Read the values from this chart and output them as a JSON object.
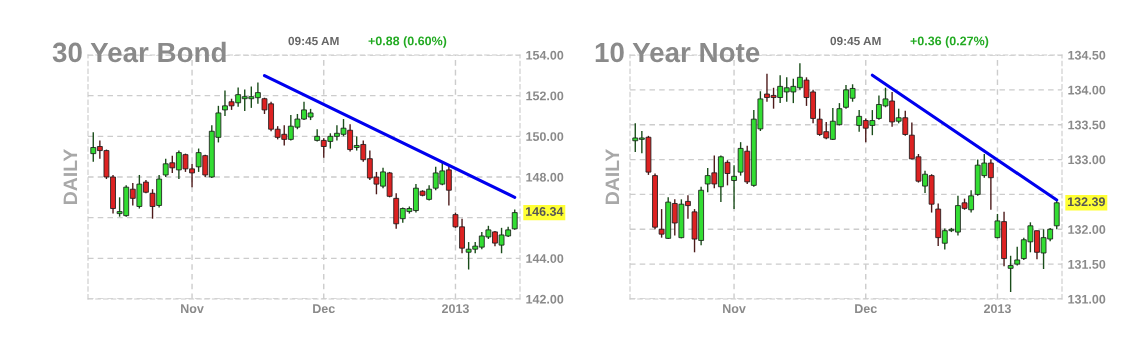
{
  "chart_data": [
    {
      "type": "candlestick",
      "title": "30 Year Bond",
      "subtitle": "09:45 AM",
      "ylabel": "DAILY",
      "annotations": [
        "+0.88 (0.60%)",
        "146.34"
      ],
      "categories": [
        null,
        null,
        null,
        null,
        null,
        null,
        null,
        null,
        null,
        null,
        null,
        null,
        null,
        null,
        null,
        "Nov",
        null,
        null,
        null,
        null,
        null,
        null,
        null,
        null,
        null,
        null,
        null,
        null,
        null,
        null,
        null,
        null,
        null,
        null,
        null,
        "Dec",
        null,
        null,
        null,
        null,
        null,
        null,
        null,
        null,
        null,
        null,
        null,
        null,
        null,
        null,
        null,
        null,
        null,
        null,
        null,
        "2013",
        null,
        null,
        null,
        null,
        null,
        null,
        null,
        null,
        null
      ],
      "ohlc": [
        [
          149.15,
          150.2,
          148.75,
          149.45
        ],
        [
          149.5,
          149.8,
          148.9,
          149.3
        ],
        [
          149.3,
          149.35,
          147.9,
          148.0
        ],
        [
          148.0,
          148.1,
          146.2,
          146.45
        ],
        [
          146.2,
          147.0,
          146.05,
          146.3
        ],
        [
          146.1,
          147.6,
          146.05,
          147.5
        ],
        [
          147.4,
          147.7,
          146.6,
          146.95
        ],
        [
          146.55,
          148.1,
          146.45,
          147.65
        ],
        [
          147.75,
          147.85,
          147.2,
          147.25
        ],
        [
          147.2,
          147.4,
          145.95,
          146.55
        ],
        [
          146.6,
          148.1,
          146.5,
          147.9
        ],
        [
          148.1,
          148.9,
          148.0,
          148.65
        ],
        [
          148.7,
          149.05,
          148.2,
          148.45
        ],
        [
          148.35,
          149.3,
          147.9,
          149.2
        ],
        [
          149.1,
          149.15,
          148.25,
          148.4
        ],
        [
          148.4,
          148.65,
          147.5,
          148.2
        ],
        [
          148.5,
          149.4,
          148.25,
          149.2
        ],
        [
          149.05,
          149.1,
          148.0,
          148.1
        ],
        [
          148.0,
          150.55,
          147.95,
          150.25
        ],
        [
          149.95,
          151.5,
          149.7,
          151.15
        ],
        [
          151.3,
          152.25,
          151.0,
          151.5
        ],
        [
          151.7,
          151.85,
          151.3,
          151.5
        ],
        [
          151.65,
          152.4,
          151.45,
          152.05
        ],
        [
          151.85,
          152.3,
          151.25,
          151.95
        ],
        [
          151.85,
          152.45,
          151.4,
          151.95
        ],
        [
          151.9,
          152.65,
          151.6,
          152.15
        ],
        [
          151.85,
          151.9,
          151.1,
          151.3
        ],
        [
          151.6,
          151.7,
          150.25,
          150.35
        ],
        [
          150.35,
          150.5,
          149.85,
          149.95
        ],
        [
          150.1,
          150.55,
          149.55,
          149.85
        ],
        [
          149.85,
          151.05,
          149.8,
          150.5
        ],
        [
          150.45,
          151.1,
          150.35,
          150.85
        ],
        [
          150.85,
          151.7,
          150.8,
          151.3
        ],
        [
          150.95,
          151.35,
          150.8,
          151.15
        ],
        [
          149.8,
          150.35,
          149.75,
          150.0
        ],
        [
          149.8,
          149.9,
          148.95,
          149.5
        ],
        [
          149.75,
          150.15,
          149.4,
          150.0
        ],
        [
          150.0,
          150.55,
          149.8,
          150.15
        ],
        [
          150.1,
          150.85,
          150.0,
          150.4
        ],
        [
          150.3,
          150.6,
          149.25,
          149.35
        ],
        [
          149.45,
          150.0,
          149.3,
          149.55
        ],
        [
          149.6,
          149.8,
          148.75,
          148.85
        ],
        [
          148.9,
          149.3,
          147.85,
          147.95
        ],
        [
          148.0,
          148.25,
          147.15,
          147.65
        ],
        [
          147.55,
          148.45,
          147.45,
          148.25
        ],
        [
          148.2,
          148.25,
          147.0,
          147.05
        ],
        [
          146.95,
          147.2,
          145.45,
          145.7
        ],
        [
          145.95,
          146.5,
          145.75,
          146.45
        ],
        [
          146.3,
          146.55,
          146.2,
          146.45
        ],
        [
          146.35,
          147.65,
          146.25,
          147.45
        ],
        [
          147.3,
          147.35,
          147.05,
          147.1
        ],
        [
          146.9,
          147.6,
          146.85,
          147.4
        ],
        [
          147.45,
          148.5,
          147.35,
          148.2
        ],
        [
          147.65,
          148.7,
          147.6,
          148.3
        ],
        [
          148.35,
          148.6,
          146.6,
          147.35
        ],
        [
          146.15,
          146.25,
          145.5,
          145.55
        ],
        [
          145.55,
          145.95,
          144.25,
          144.5
        ],
        [
          144.3,
          144.8,
          143.45,
          144.45
        ],
        [
          144.45,
          144.8,
          144.25,
          144.6
        ],
        [
          144.55,
          145.3,
          144.45,
          145.1
        ],
        [
          145.05,
          145.6,
          144.95,
          145.4
        ],
        [
          145.3,
          145.35,
          144.6,
          144.75
        ],
        [
          144.65,
          145.5,
          144.25,
          145.15
        ],
        [
          145.1,
          145.55,
          145.05,
          145.4
        ],
        [
          145.45,
          146.4,
          145.4,
          146.25
        ]
      ],
      "colors": [
        "#33dd33",
        "#dd2222",
        "#dd2222",
        "#dd2222",
        "#33dd33",
        "#33dd33",
        "#dd2222",
        "#33dd33",
        "#dd2222",
        "#dd2222",
        "#33dd33",
        "#33dd33",
        "#dd2222",
        "#33dd33",
        "#dd2222",
        "#dd2222",
        "#33dd33",
        "#dd2222",
        "#33dd33",
        "#33dd33",
        "#33dd33",
        "#dd2222",
        "#33dd33",
        "#33dd33",
        "#33dd33",
        "#33dd33",
        "#dd2222",
        "#dd2222",
        "#dd2222",
        "#dd2222",
        "#33dd33",
        "#33dd33",
        "#33dd33",
        "#33dd33",
        "#33dd33",
        "#dd2222",
        "#33dd33",
        "#33dd33",
        "#33dd33",
        "#dd2222",
        "#33dd33",
        "#dd2222",
        "#dd2222",
        "#dd2222",
        "#33dd33",
        "#dd2222",
        "#dd2222",
        "#33dd33",
        "#33dd33",
        "#33dd33",
        "#dd2222",
        "#33dd33",
        "#33dd33",
        "#33dd33",
        "#dd2222",
        "#dd2222",
        "#dd2222",
        "#33dd33",
        "#33dd33",
        "#33dd33",
        "#33dd33",
        "#dd2222",
        "#33dd33",
        "#33dd33",
        "#33dd33"
      ],
      "series": [
        {
          "type": "line",
          "values": [
            null,
            null,
            null,
            null,
            null,
            null,
            null,
            null,
            null,
            null,
            null,
            null,
            null,
            null,
            null,
            null,
            null,
            null,
            null,
            null,
            null,
            null,
            null,
            null,
            null,
            null,
            152.99,
            null,
            null,
            null,
            null,
            null,
            null,
            null,
            null,
            null,
            null,
            null,
            null,
            null,
            null,
            null,
            null,
            null,
            null,
            null,
            null,
            null,
            null,
            null,
            null,
            null,
            null,
            null,
            null,
            null,
            null,
            null,
            null,
            null,
            null,
            null,
            null,
            null,
            147.0
          ],
          "color": "#0000ee"
        }
      ],
      "ylim": [
        142,
        154
      ],
      "yticks": [
        {
          "value": 142,
          "label": "142.00"
        },
        {
          "value": 144,
          "label": "144.00"
        },
        {
          "value": 146,
          "label": null
        },
        {
          "value": 148,
          "label": "148.00"
        },
        {
          "value": 150,
          "label": "150.00"
        },
        {
          "value": 152,
          "label": "152.00"
        },
        {
          "value": 154,
          "label": "154.00"
        }
      ],
      "grid": true
    },
    {
      "type": "candlestick",
      "title": "10 Year Note",
      "subtitle": "09:45 AM",
      "ylabel": "DAILY",
      "annotations": [
        "+0.36 (0.27%)",
        "132.39"
      ],
      "categories": [
        null,
        null,
        null,
        null,
        null,
        null,
        null,
        null,
        null,
        null,
        null,
        null,
        null,
        null,
        null,
        "Nov",
        null,
        null,
        null,
        null,
        null,
        null,
        null,
        null,
        null,
        null,
        null,
        null,
        null,
        null,
        null,
        null,
        null,
        null,
        null,
        "Dec",
        null,
        null,
        null,
        null,
        null,
        null,
        null,
        null,
        null,
        null,
        null,
        null,
        null,
        null,
        null,
        null,
        null,
        null,
        null,
        "2013",
        null,
        null,
        null,
        null,
        null,
        null,
        null,
        null,
        null
      ],
      "ohlc": [
        [
          133.27,
          133.52,
          133.11,
          133.31
        ],
        [
          133.29,
          133.41,
          133.09,
          133.31
        ],
        [
          133.32,
          133.34,
          132.78,
          132.82
        ],
        [
          132.77,
          132.8,
          132.0,
          132.03
        ],
        [
          132.0,
          132.29,
          131.88,
          131.93
        ],
        [
          131.87,
          132.46,
          131.86,
          132.39
        ],
        [
          132.37,
          132.43,
          131.91,
          132.09
        ],
        [
          131.88,
          132.43,
          131.87,
          132.36
        ],
        [
          132.4,
          132.49,
          132.15,
          132.34
        ],
        [
          132.25,
          132.29,
          131.67,
          131.86
        ],
        [
          131.84,
          132.61,
          131.77,
          132.56
        ],
        [
          132.65,
          132.88,
          132.53,
          132.77
        ],
        [
          132.81,
          133.06,
          132.59,
          132.65
        ],
        [
          132.61,
          133.06,
          132.39,
          133.04
        ],
        [
          132.96,
          132.99,
          132.63,
          132.8
        ],
        [
          132.7,
          132.92,
          132.29,
          132.76
        ],
        [
          132.82,
          133.25,
          132.77,
          133.16
        ],
        [
          133.12,
          133.2,
          132.65,
          132.68
        ],
        [
          132.63,
          133.71,
          132.61,
          133.58
        ],
        [
          133.44,
          133.98,
          133.41,
          133.87
        ],
        [
          133.94,
          134.23,
          133.83,
          133.89
        ],
        [
          133.92,
          134.03,
          133.73,
          133.89
        ],
        [
          133.89,
          134.21,
          133.81,
          134.05
        ],
        [
          133.97,
          134.18,
          133.83,
          134.03
        ],
        [
          133.97,
          134.16,
          133.81,
          134.05
        ],
        [
          134.03,
          134.38,
          134.0,
          134.18
        ],
        [
          134.14,
          134.18,
          133.77,
          133.89
        ],
        [
          133.97,
          134.0,
          133.52,
          133.59
        ],
        [
          133.58,
          133.73,
          133.34,
          133.36
        ],
        [
          133.4,
          133.54,
          133.29,
          133.31
        ],
        [
          133.29,
          133.74,
          133.28,
          133.55
        ],
        [
          133.5,
          133.81,
          133.49,
          133.73
        ],
        [
          133.75,
          134.07,
          133.73,
          134.0
        ],
        [
          133.88,
          134.08,
          133.83,
          134.02
        ],
        [
          133.49,
          133.71,
          133.4,
          133.62
        ],
        [
          133.56,
          133.59,
          133.25,
          133.45
        ],
        [
          133.49,
          133.71,
          133.35,
          133.56
        ],
        [
          133.59,
          133.92,
          133.57,
          133.79
        ],
        [
          133.77,
          134.03,
          133.75,
          133.87
        ],
        [
          133.84,
          133.97,
          133.47,
          133.54
        ],
        [
          133.55,
          133.73,
          133.52,
          133.6
        ],
        [
          133.6,
          133.7,
          133.34,
          133.36
        ],
        [
          133.35,
          133.53,
          133.0,
          133.01
        ],
        [
          133.04,
          133.08,
          132.67,
          132.69
        ],
        [
          132.62,
          132.84,
          132.52,
          132.79
        ],
        [
          132.77,
          132.79,
          132.24,
          132.36
        ],
        [
          132.29,
          132.37,
          131.76,
          131.88
        ],
        [
          131.8,
          132.01,
          131.71,
          131.98
        ],
        [
          131.98,
          132.02,
          131.96,
          132.0
        ],
        [
          131.96,
          132.48,
          131.91,
          132.34
        ],
        [
          132.38,
          132.44,
          132.28,
          132.3
        ],
        [
          132.28,
          132.56,
          132.24,
          132.48
        ],
        [
          132.5,
          133.0,
          132.48,
          132.92
        ],
        [
          132.77,
          133.08,
          132.74,
          132.95
        ],
        [
          132.95,
          133.0,
          132.28,
          132.74
        ],
        [
          131.88,
          132.22,
          131.87,
          132.12
        ],
        [
          132.11,
          132.25,
          131.47,
          131.58
        ],
        [
          131.44,
          131.62,
          131.1,
          131.48
        ],
        [
          131.5,
          131.75,
          131.48,
          131.56
        ],
        [
          131.58,
          131.88,
          131.56,
          131.85
        ],
        [
          131.82,
          132.1,
          131.67,
          132.05
        ],
        [
          131.98,
          131.98,
          131.57,
          131.67
        ],
        [
          131.66,
          132.0,
          131.43,
          131.88
        ],
        [
          131.86,
          132.02,
          131.83,
          132.0
        ],
        [
          132.05,
          132.43,
          132.0,
          132.38
        ]
      ],
      "colors": [
        "#33dd33",
        "#33dd33",
        "#dd2222",
        "#dd2222",
        "#dd2222",
        "#33dd33",
        "#dd2222",
        "#33dd33",
        "#dd2222",
        "#dd2222",
        "#33dd33",
        "#33dd33",
        "#dd2222",
        "#33dd33",
        "#dd2222",
        "#33dd33",
        "#33dd33",
        "#dd2222",
        "#33dd33",
        "#33dd33",
        "#dd2222",
        "#dd2222",
        "#33dd33",
        "#33dd33",
        "#33dd33",
        "#33dd33",
        "#dd2222",
        "#dd2222",
        "#dd2222",
        "#dd2222",
        "#33dd33",
        "#33dd33",
        "#33dd33",
        "#33dd33",
        "#33dd33",
        "#dd2222",
        "#33dd33",
        "#33dd33",
        "#33dd33",
        "#dd2222",
        "#33dd33",
        "#dd2222",
        "#dd2222",
        "#dd2222",
        "#33dd33",
        "#dd2222",
        "#dd2222",
        "#33dd33",
        "#33dd33",
        "#33dd33",
        "#dd2222",
        "#33dd33",
        "#33dd33",
        "#33dd33",
        "#dd2222",
        "#33dd33",
        "#dd2222",
        "#33dd33",
        "#33dd33",
        "#33dd33",
        "#33dd33",
        "#dd2222",
        "#33dd33",
        "#33dd33",
        "#33dd33"
      ],
      "series": [
        {
          "type": "line",
          "values": [
            null,
            null,
            null,
            null,
            null,
            null,
            null,
            null,
            null,
            null,
            null,
            null,
            null,
            null,
            null,
            null,
            null,
            null,
            null,
            null,
            null,
            null,
            null,
            null,
            null,
            null,
            null,
            null,
            null,
            null,
            null,
            null,
            null,
            null,
            null,
            null,
            134.21,
            null,
            null,
            null,
            null,
            null,
            null,
            null,
            null,
            null,
            null,
            null,
            null,
            null,
            null,
            null,
            null,
            null,
            null,
            null,
            null,
            null,
            null,
            null,
            null,
            null,
            null,
            null,
            132.42
          ],
          "color": "#0000ee"
        }
      ],
      "ylim": [
        131,
        134.5
      ],
      "yticks": [
        {
          "value": 131,
          "label": "131.00"
        },
        {
          "value": 131.5,
          "label": "131.50"
        },
        {
          "value": 132,
          "label": "132.00"
        },
        {
          "value": 132.5,
          "label": null
        },
        {
          "value": 133,
          "label": "133.00"
        },
        {
          "value": 133.5,
          "label": "133.50"
        },
        {
          "value": 134,
          "label": "134.00"
        },
        {
          "value": 134.5,
          "label": "134.50"
        }
      ],
      "grid": true
    }
  ]
}
